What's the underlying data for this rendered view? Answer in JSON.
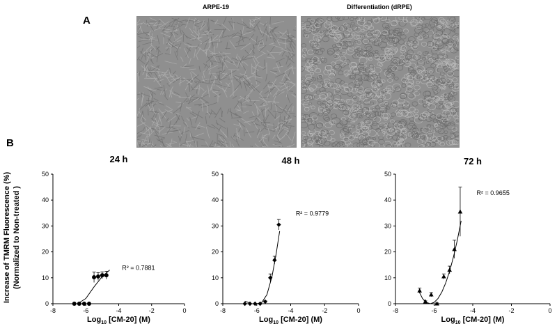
{
  "panel_a_label": "A",
  "panel_b_label": "B",
  "micrographs": [
    {
      "title": "ARPE-19",
      "texture": "elongated"
    },
    {
      "title": "Differentiation (dRPE)",
      "texture": "cobblestone"
    }
  ],
  "y_axis_title_line1": "Increase of TMRM Fluorescence (%)",
  "y_axis_title_line2": "(Normalized to Non-treated )",
  "chart_data": [
    {
      "type": "scatter",
      "title": "24 h",
      "xlabel_main": "Log",
      "xlabel_sub": "10",
      "xlabel_rest": " [CM-20] (M)",
      "xlim": [
        -8,
        0
      ],
      "ylim": [
        0,
        50
      ],
      "xticks": [
        -8,
        -6,
        -4,
        -2,
        0
      ],
      "yticks": [
        0,
        10,
        20,
        30,
        40,
        50
      ],
      "marker": "circle",
      "x": [
        -6.7,
        -6.4,
        -6.1,
        -5.8,
        -5.5,
        -5.25,
        -5.0,
        -4.75
      ],
      "y": [
        0,
        0,
        0,
        0,
        10.2,
        10.5,
        11.0,
        11.0
      ],
      "err": [
        0,
        0,
        0,
        0,
        2.0,
        1.5,
        1.3,
        1.5
      ],
      "fit": {
        "x": [
          -6.5,
          -6.0,
          -5.5,
          -5.0,
          -4.55
        ],
        "y": [
          0.0,
          2.0,
          6.5,
          10.5,
          13.0
        ]
      },
      "r2": "R² = 0.7881",
      "r2_pos": {
        "x": -3.8,
        "y": 13
      }
    },
    {
      "type": "scatter",
      "title": "48 h",
      "xlabel_main": "Log",
      "xlabel_sub": "10",
      "xlabel_rest": " [CM-20] (M)",
      "xlim": [
        -8,
        0
      ],
      "ylim": [
        0,
        50
      ],
      "xticks": [
        -8,
        -6,
        -4,
        -2,
        0
      ],
      "yticks": [
        0,
        10,
        20,
        30,
        40,
        50
      ],
      "marker": "diamond",
      "x": [
        -6.7,
        -6.4,
        -6.1,
        -5.8,
        -5.5,
        -5.2,
        -4.95,
        -4.7
      ],
      "y": [
        0,
        0,
        0,
        0,
        0.8,
        10.0,
        16.8,
        30.5
      ],
      "err": [
        0,
        0,
        0,
        0,
        0.3,
        1.5,
        1.5,
        2.0
      ],
      "fit": {
        "x": [
          -6.7,
          -6.3,
          -6.0,
          -5.7,
          -5.4,
          -5.1,
          -4.85,
          -4.65
        ],
        "y": [
          1.0,
          0.0,
          0.0,
          0.5,
          3.5,
          10.5,
          19.5,
          28.0
        ]
      },
      "r2": "R² = 0.9779",
      "r2_pos": {
        "x": -3.7,
        "y": 34
      }
    },
    {
      "type": "scatter",
      "title": "72 h",
      "xlabel_main": "Log",
      "xlabel_sub": "10",
      "xlabel_rest": " [CM-20] (M)",
      "xlim": [
        -8,
        0
      ],
      "ylim": [
        0,
        50
      ],
      "xticks": [
        -8,
        -6,
        -4,
        -2,
        0
      ],
      "yticks": [
        0,
        10,
        20,
        30,
        40,
        50
      ],
      "marker": "triangle",
      "x": [
        -6.75,
        -6.45,
        -6.15,
        -5.85,
        -5.5,
        -5.2,
        -4.95,
        -4.65
      ],
      "y": [
        5.0,
        0.8,
        3.5,
        0,
        10.5,
        13.0,
        21.0,
        35.5
      ],
      "err": [
        1.0,
        0.3,
        0.8,
        0.3,
        1.0,
        1.5,
        3.5,
        9.5
      ],
      "fit": {
        "x": [
          -6.8,
          -6.6,
          -6.4,
          -6.2,
          -6.0,
          -5.8,
          -5.6,
          -5.4,
          -5.2,
          -5.0,
          -4.8,
          -4.6
        ],
        "y": [
          5.0,
          2.0,
          0.5,
          0.0,
          0.5,
          2.0,
          4.5,
          8.0,
          12.5,
          18.0,
          24.5,
          32.0
        ]
      },
      "r2": "R² = 0.9655",
      "r2_pos": {
        "x": -3.8,
        "y": 42
      }
    }
  ]
}
